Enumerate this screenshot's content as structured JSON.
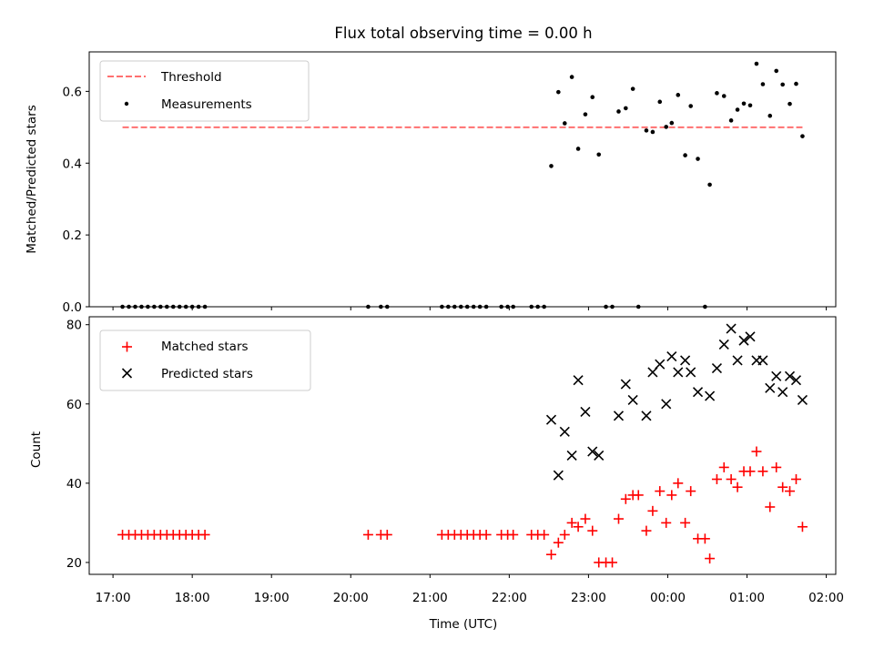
{
  "chart_data": [
    {
      "type": "scatter",
      "title": "Flux total observing time = 0.00 h",
      "xlabel": "",
      "ylabel": "Matched/Predicted stars",
      "xlim": [
        16.7,
        26.12
      ],
      "ylim": [
        0.0,
        0.71
      ],
      "yticks": [
        0.0,
        0.2,
        0.4,
        0.6
      ],
      "ytick_labels": [
        "0.0",
        "0.2",
        "0.4",
        "0.6"
      ],
      "legend": {
        "placement": "top-left",
        "entries": [
          "Threshold",
          "Measurements"
        ]
      },
      "threshold": {
        "name": "Threshold",
        "y": 0.5,
        "x_start": 17.12,
        "x_end": 25.7,
        "color": "#ff7070",
        "style": "dashed"
      },
      "series": [
        {
          "name": "Measurements",
          "color": "#000000",
          "marker": "dot",
          "x": [
            17.12,
            17.2,
            17.28,
            17.36,
            17.44,
            17.52,
            17.6,
            17.68,
            17.76,
            17.84,
            17.92,
            18.0,
            18.08,
            18.16,
            20.22,
            20.38,
            20.46,
            21.15,
            21.23,
            21.31,
            21.39,
            21.47,
            21.55,
            21.63,
            21.71,
            21.9,
            21.98,
            22.05,
            22.28,
            22.36,
            22.44,
            22.53,
            22.62,
            22.7,
            22.79,
            22.87,
            22.96,
            23.05,
            23.13,
            23.22,
            23.3,
            23.38,
            23.47,
            23.56,
            23.63,
            23.73,
            23.81,
            23.9,
            23.98,
            24.05,
            24.13,
            24.22,
            24.29,
            24.38,
            24.47,
            24.53,
            24.62,
            24.71,
            24.8,
            24.88,
            24.96,
            25.04,
            25.12,
            25.2,
            25.29,
            25.37,
            25.45,
            25.54,
            25.62,
            25.7
          ],
          "y": [
            0,
            0,
            0,
            0,
            0,
            0,
            0,
            0,
            0,
            0,
            0,
            0,
            0,
            0,
            0,
            0,
            0,
            0,
            0,
            0,
            0,
            0,
            0,
            0,
            0,
            0,
            0,
            0,
            0,
            0,
            0,
            0.392,
            0.598,
            0.511,
            0.64,
            0.44,
            0.536,
            0.584,
            0.424,
            0,
            0,
            0.544,
            0.553,
            0.607,
            0,
            0.491,
            0.487,
            0.571,
            0.501,
            0.512,
            0.59,
            0.422,
            0.559,
            0.412,
            0,
            0.34,
            0.595,
            0.587,
            0.519,
            0.549,
            0.566,
            0.561,
            0.677,
            0.62,
            0.532,
            0.657,
            0.619,
            0.565,
            0.621,
            0.475
          ]
        }
      ]
    },
    {
      "type": "scatter",
      "title": "",
      "xlabel": "Time (UTC)",
      "ylabel": "Count",
      "xlim": [
        16.7,
        26.12
      ],
      "ylim": [
        17,
        82
      ],
      "xticks": [
        17,
        18,
        19,
        20,
        21,
        22,
        23,
        24,
        25,
        26
      ],
      "xtick_labels": [
        "17:00",
        "18:00",
        "19:00",
        "20:00",
        "21:00",
        "22:00",
        "23:00",
        "00:00",
        "01:00",
        "02:00"
      ],
      "yticks": [
        20,
        40,
        60,
        80
      ],
      "ytick_labels": [
        "20",
        "40",
        "60",
        "80"
      ],
      "legend": {
        "placement": "top-left",
        "entries": [
          "Matched stars",
          "Predicted stars"
        ]
      },
      "series": [
        {
          "name": "Matched stars",
          "color": "#ff0000",
          "marker": "plus",
          "x": [
            17.12,
            17.2,
            17.28,
            17.36,
            17.44,
            17.52,
            17.6,
            17.68,
            17.76,
            17.84,
            17.92,
            18.0,
            18.08,
            18.16,
            20.22,
            20.38,
            20.46,
            21.15,
            21.23,
            21.31,
            21.39,
            21.47,
            21.55,
            21.63,
            21.71,
            21.9,
            21.98,
            22.05,
            22.28,
            22.36,
            22.44,
            22.53,
            22.62,
            22.7,
            22.79,
            22.87,
            22.96,
            23.05,
            23.13,
            23.22,
            23.3,
            23.38,
            23.47,
            23.56,
            23.63,
            23.73,
            23.81,
            23.9,
            23.98,
            24.05,
            24.13,
            24.22,
            24.29,
            24.38,
            24.47,
            24.53,
            24.62,
            24.71,
            24.8,
            24.88,
            24.96,
            25.04,
            25.12,
            25.2,
            25.29,
            25.37,
            25.45,
            25.54,
            25.62,
            25.7
          ],
          "y": [
            27,
            27,
            27,
            27,
            27,
            27,
            27,
            27,
            27,
            27,
            27,
            27,
            27,
            27,
            27,
            27,
            27,
            27,
            27,
            27,
            27,
            27,
            27,
            27,
            27,
            27,
            27,
            27,
            27,
            27,
            27,
            22,
            25,
            27,
            30,
            29,
            31,
            28,
            20,
            20,
            20,
            31,
            36,
            37,
            37,
            28,
            33,
            38,
            30,
            37,
            40,
            30,
            38,
            26,
            26,
            21,
            41,
            44,
            41,
            39,
            43,
            43,
            48,
            43,
            34,
            44,
            39,
            38,
            41,
            29
          ]
        },
        {
          "name": "Predicted stars",
          "color": "#000000",
          "marker": "x",
          "x": [
            22.53,
            22.62,
            22.7,
            22.79,
            22.87,
            22.96,
            23.05,
            23.13,
            23.38,
            23.47,
            23.56,
            23.73,
            23.81,
            23.9,
            23.98,
            24.05,
            24.13,
            24.22,
            24.29,
            24.38,
            24.53,
            24.62,
            24.71,
            24.8,
            24.88,
            24.96,
            25.04,
            25.12,
            25.2,
            25.29,
            25.37,
            25.45,
            25.54,
            25.62,
            25.7
          ],
          "y": [
            56,
            42,
            53,
            47,
            66,
            58,
            48,
            47,
            57,
            65,
            61,
            57,
            68,
            70,
            60,
            72,
            68,
            71,
            68,
            63,
            62,
            69,
            75,
            79,
            71,
            76,
            77,
            71,
            71,
            64,
            67,
            63,
            67,
            66,
            61
          ]
        }
      ]
    }
  ]
}
